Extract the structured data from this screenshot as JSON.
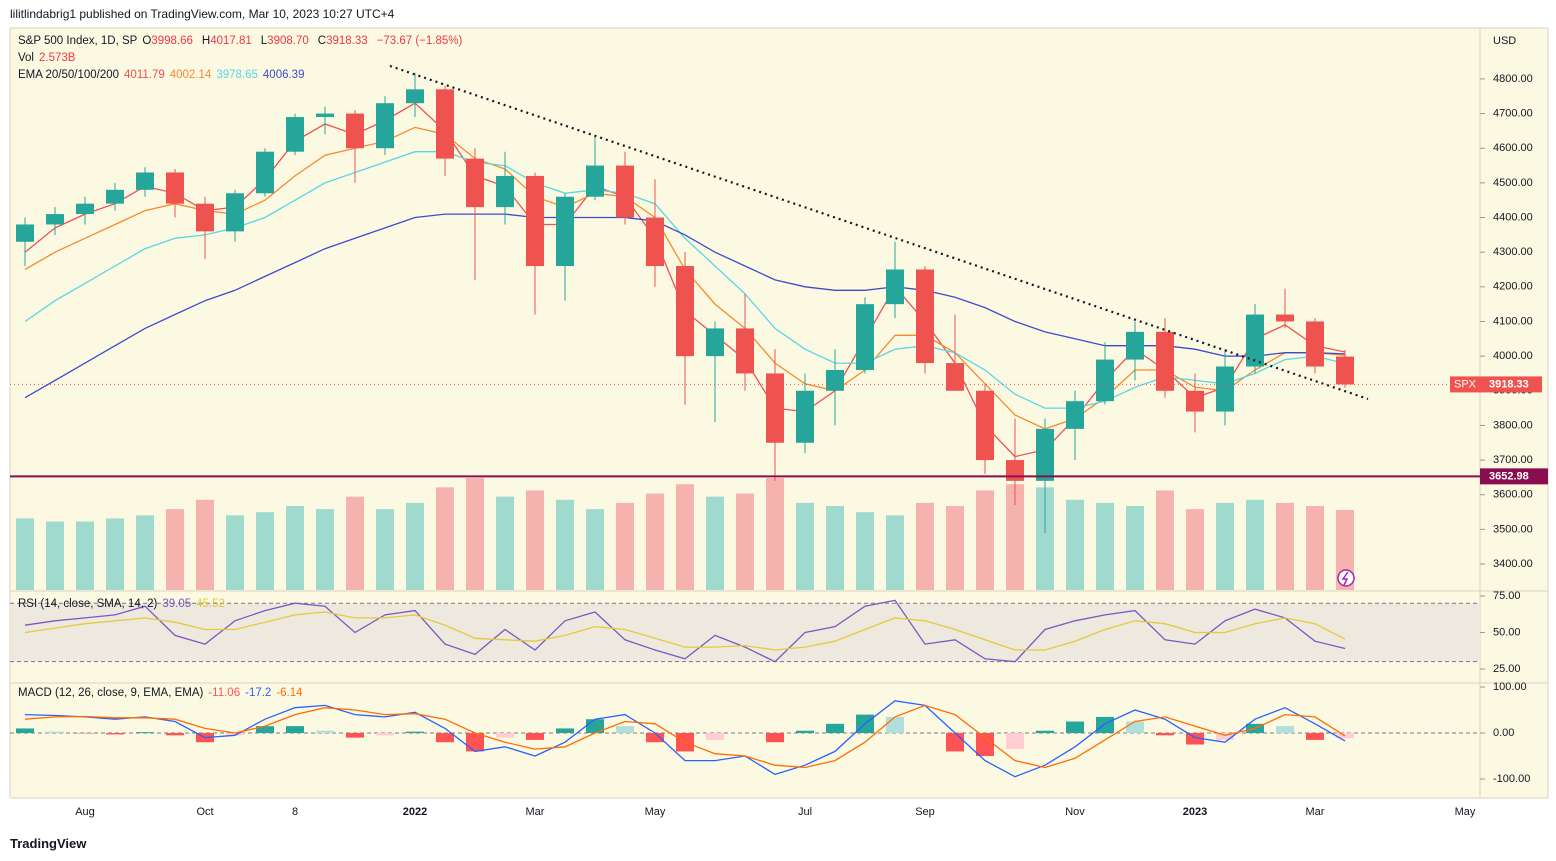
{
  "header": {
    "publisher": "lilitlindabrig1 published on TradingView.com, Mar 10, 2023 10:27 UTC+4",
    "footer": "TradingView"
  },
  "chart_data": [
    {
      "type": "candlestick",
      "title": "S&P 500 Index, 1D, SP",
      "ohlc_legend": [
        {
          "key": "O",
          "value": "3998.66"
        },
        {
          "key": "H",
          "value": "4017.81"
        },
        {
          "key": "L",
          "value": "3908.70"
        },
        {
          "key": "C",
          "value": "3918.33"
        }
      ],
      "change": "−73.67 (−1.85%)",
      "currency": "USD",
      "categories": [
        null,
        null,
        "Aug",
        null,
        null,
        null,
        "Oct",
        null,
        null,
        "8",
        null,
        null,
        null,
        "2022",
        null,
        null,
        null,
        "Mar",
        null,
        null,
        null,
        "May",
        null,
        null,
        null,
        null,
        "Jul",
        null,
        null,
        null,
        "Sep",
        null,
        null,
        null,
        null,
        "Nov",
        null,
        null,
        null,
        "2023",
        null,
        null,
        null,
        "Mar",
        null,
        null,
        null,
        null,
        "May"
      ],
      "open": [
        4330,
        4380,
        4410,
        4440,
        4480,
        4530,
        4440,
        4360,
        4470,
        4590,
        4690,
        4700,
        4600,
        4730,
        4770,
        4570,
        4430,
        4520,
        4260,
        4460,
        4550,
        4400,
        4260,
        4000,
        4080,
        3950,
        3750,
        3900,
        3960,
        4150,
        4250,
        3980,
        3900,
        3700,
        3640,
        3790,
        3870,
        3990,
        4070,
        3900,
        3840,
        3970,
        4120,
        4100,
        3998.66,
        null,
        null,
        null,
        null
      ],
      "high": [
        4400,
        4430,
        4460,
        4500,
        4545,
        4540,
        4460,
        4480,
        4600,
        4700,
        4720,
        4710,
        4750,
        4818,
        4780,
        4600,
        4590,
        4530,
        4470,
        4637,
        4590,
        4510,
        4300,
        4100,
        4180,
        4020,
        3950,
        4020,
        4170,
        4330,
        4260,
        4120,
        3920,
        3820,
        3820,
        3900,
        4040,
        4100,
        4110,
        3950,
        4020,
        4150,
        4195,
        4110,
        4017.81,
        null,
        null,
        null,
        null
      ],
      "low": [
        4260,
        4350,
        4380,
        4420,
        4460,
        4400,
        4280,
        4330,
        4460,
        4580,
        4640,
        4500,
        4580,
        4690,
        4520,
        4220,
        4380,
        4120,
        4160,
        4450,
        4380,
        4200,
        3860,
        3810,
        3900,
        3640,
        3720,
        3800,
        3950,
        4110,
        3950,
        3900,
        3660,
        3570,
        3490,
        3700,
        3860,
        3930,
        3880,
        3780,
        3800,
        3950,
        4080,
        3950,
        3908.7,
        null,
        null,
        null,
        null
      ],
      "close": [
        4380,
        4410,
        4440,
        4480,
        4530,
        4440,
        4360,
        4470,
        4590,
        4690,
        4700,
        4600,
        4730,
        4770,
        4570,
        4430,
        4520,
        4260,
        4460,
        4550,
        4400,
        4260,
        4000,
        4080,
        3950,
        3750,
        3900,
        3960,
        4150,
        4250,
        3980,
        3900,
        3700,
        3640,
        3790,
        3870,
        3990,
        4070,
        3900,
        3840,
        3970,
        4120,
        4100,
        3970,
        3918.33,
        null,
        null,
        null,
        null
      ],
      "up_color": "#26a69a",
      "down_color": "#ef5350",
      "ylim": [
        3325,
        4947
      ],
      "yticks": [
        {
          "value": 3400,
          "label": "3400.00"
        },
        {
          "value": 3500,
          "label": "3500.00"
        },
        {
          "value": 3600,
          "label": "3600.00"
        },
        {
          "value": 3700,
          "label": "3700.00"
        },
        {
          "value": 3800,
          "label": "3800.00"
        },
        {
          "value": 3900,
          "label": "3900.00"
        },
        {
          "value": 4000,
          "label": "4000.00"
        },
        {
          "value": 4100,
          "label": "4100.00"
        },
        {
          "value": 4200,
          "label": "4200.00"
        },
        {
          "value": 4300,
          "label": "4300.00"
        },
        {
          "value": 4400,
          "label": "4400.00"
        },
        {
          "value": 4500,
          "label": "4500.00"
        },
        {
          "value": 4600,
          "label": "4600.00"
        },
        {
          "value": 4700,
          "label": "4700.00"
        },
        {
          "value": 4800,
          "label": "4800.00"
        }
      ],
      "lines_legend": "EMA 20/50/100/200",
      "series": [
        {
          "color": "#f0504f",
          "values": [
            4300,
            4370,
            4410,
            4440,
            4490,
            4470,
            4420,
            4430,
            4510,
            4620,
            4670,
            4640,
            4680,
            4730,
            4650,
            4520,
            4490,
            4380,
            4380,
            4490,
            4460,
            4340,
            4130,
            4060,
            3990,
            3850,
            3840,
            3900,
            4050,
            4200,
            4100,
            3980,
            3800,
            3710,
            3730,
            3820,
            3930,
            4020,
            3960,
            3880,
            3910,
            4050,
            4090,
            4030,
            4011.79,
            null,
            null,
            null,
            null
          ]
        },
        {
          "color": "#f58b2d",
          "values": [
            4250,
            4300,
            4340,
            4380,
            4420,
            4440,
            4420,
            4410,
            4450,
            4520,
            4580,
            4600,
            4620,
            4660,
            4640,
            4570,
            4540,
            4460,
            4430,
            4470,
            4460,
            4400,
            4250,
            4150,
            4080,
            3980,
            3920,
            3900,
            3960,
            4060,
            4060,
            4010,
            3920,
            3830,
            3790,
            3820,
            3880,
            3960,
            3960,
            3910,
            3900,
            3960,
            4010,
            4010,
            4002.14,
            null,
            null,
            null,
            null
          ]
        },
        {
          "color": "#5ad6e6",
          "values": [
            4100,
            4160,
            4210,
            4260,
            4310,
            4340,
            4350,
            4370,
            4400,
            4450,
            4500,
            4530,
            4560,
            4590,
            4590,
            4560,
            4550,
            4500,
            4470,
            4480,
            4470,
            4440,
            4340,
            4260,
            4180,
            4080,
            4020,
            3980,
            3980,
            4020,
            4030,
            4010,
            3960,
            3890,
            3850,
            3850,
            3870,
            3910,
            3940,
            3930,
            3920,
            3950,
            3990,
            4000,
            3978.65,
            null,
            null,
            null,
            null
          ]
        },
        {
          "color": "#3b4ccf",
          "values": [
            3880,
            3930,
            3980,
            4030,
            4080,
            4120,
            4160,
            4190,
            4230,
            4270,
            4310,
            4340,
            4370,
            4400,
            4410,
            4410,
            4410,
            4400,
            4400,
            4400,
            4400,
            4390,
            4350,
            4300,
            4260,
            4220,
            4200,
            4190,
            4190,
            4200,
            4190,
            4170,
            4140,
            4100,
            4070,
            4050,
            4030,
            4030,
            4030,
            4020,
            4000,
            4000,
            4010,
            4010,
            4006.39,
            null,
            null,
            null,
            null
          ]
        }
      ],
      "hline": 3652.98,
      "hline_color": "#880e4f",
      "last_label": "SPX"
    },
    {
      "type": "volume",
      "title": "Vol",
      "legend_value": "2.573B",
      "values": [
        2.3,
        2.2,
        2.2,
        2.3,
        2.4,
        2.6,
        2.9,
        2.4,
        2.5,
        2.7,
        2.6,
        3.0,
        2.6,
        2.8,
        3.3,
        3.6,
        3.0,
        3.2,
        2.9,
        2.6,
        2.8,
        3.1,
        3.4,
        3.0,
        3.1,
        3.6,
        2.8,
        2.7,
        2.5,
        2.4,
        2.8,
        2.7,
        3.2,
        3.4,
        3.3,
        2.9,
        2.8,
        2.7,
        3.2,
        2.6,
        2.8,
        2.9,
        2.8,
        2.7,
        2.573,
        null,
        null,
        null,
        null
      ],
      "up_color": "#8fd3c9",
      "down_color": "#f4a7a3"
    },
    {
      "type": "oscillator",
      "title": "RSI (14, close, SMA, 14, 2)",
      "ylim": [
        15.4,
        77.7
      ],
      "yticks": [
        {
          "value": 25,
          "label": "25.00"
        },
        {
          "value": 50,
          "label": "50.00"
        },
        {
          "value": 75,
          "label": "75.00"
        }
      ],
      "bands": [
        30,
        70
      ],
      "series": [
        {
          "color": "#7e57c2",
          "values": [
            55,
            58,
            60,
            62,
            68,
            48,
            42,
            58,
            65,
            70,
            68,
            50,
            62,
            65,
            42,
            35,
            52,
            38,
            58,
            64,
            45,
            38,
            32,
            48,
            40,
            30,
            50,
            54,
            68,
            72,
            42,
            45,
            32,
            30,
            52,
            58,
            62,
            65,
            45,
            42,
            58,
            66,
            60,
            44,
            39.05,
            null,
            null,
            null,
            null
          ]
        },
        {
          "color": "#e6c93c",
          "values": [
            50,
            53,
            56,
            58,
            60,
            57,
            52,
            52,
            57,
            62,
            64,
            60,
            60,
            62,
            55,
            46,
            45,
            44,
            48,
            54,
            52,
            46,
            40,
            40,
            41,
            38,
            40,
            44,
            52,
            60,
            58,
            52,
            45,
            38,
            38,
            44,
            52,
            58,
            56,
            50,
            50,
            56,
            60,
            56,
            45.52,
            null,
            null,
            null,
            null
          ]
        }
      ]
    },
    {
      "type": "macd",
      "title": "MACD (12, 26, close, 9, EMA, EMA)",
      "ylim": [
        -139,
        108.7
      ],
      "yticks": [
        {
          "value": -100,
          "label": "-100.00"
        },
        {
          "value": 0,
          "label": "0.00"
        },
        {
          "value": 100,
          "label": "100.00"
        }
      ],
      "histogram": [
        10,
        3,
        -1,
        -3,
        2,
        -5,
        -20,
        -5,
        15,
        15,
        5,
        -10,
        -5,
        3,
        -20,
        -40,
        -10,
        -15,
        10,
        30,
        15,
        -20,
        -40,
        -15,
        0,
        -20,
        5,
        20,
        40,
        35,
        0,
        -40,
        -50,
        -35,
        5,
        25,
        35,
        25,
        -5,
        -25,
        -15,
        20,
        15,
        -15,
        -11.06,
        null,
        null,
        null,
        null
      ],
      "hist_colors": [
        "#26a69a",
        "#b2dfdb",
        "#ffcdd2",
        "#ff5252"
      ],
      "series": [
        {
          "color": "#2962ff",
          "values": [
            40,
            38,
            35,
            30,
            35,
            25,
            -10,
            -5,
            30,
            55,
            60,
            40,
            35,
            45,
            10,
            -40,
            -30,
            -50,
            -20,
            30,
            40,
            0,
            -60,
            -60,
            -50,
            -90,
            -70,
            -40,
            20,
            70,
            60,
            0,
            -60,
            -95,
            -70,
            -30,
            20,
            50,
            30,
            -10,
            -20,
            30,
            55,
            20,
            -17.2,
            null,
            null,
            null,
            null
          ]
        },
        {
          "color": "#ff6d00",
          "values": [
            30,
            35,
            36,
            33,
            33,
            30,
            10,
            0,
            15,
            40,
            55,
            50,
            40,
            42,
            30,
            0,
            -20,
            -35,
            -30,
            0,
            25,
            20,
            -20,
            -45,
            -50,
            -70,
            -75,
            -60,
            -20,
            35,
            60,
            40,
            -10,
            -60,
            -75,
            -55,
            -15,
            25,
            35,
            15,
            -5,
            10,
            40,
            35,
            -6.14,
            null,
            null,
            null,
            null
          ]
        }
      ]
    }
  ]
}
